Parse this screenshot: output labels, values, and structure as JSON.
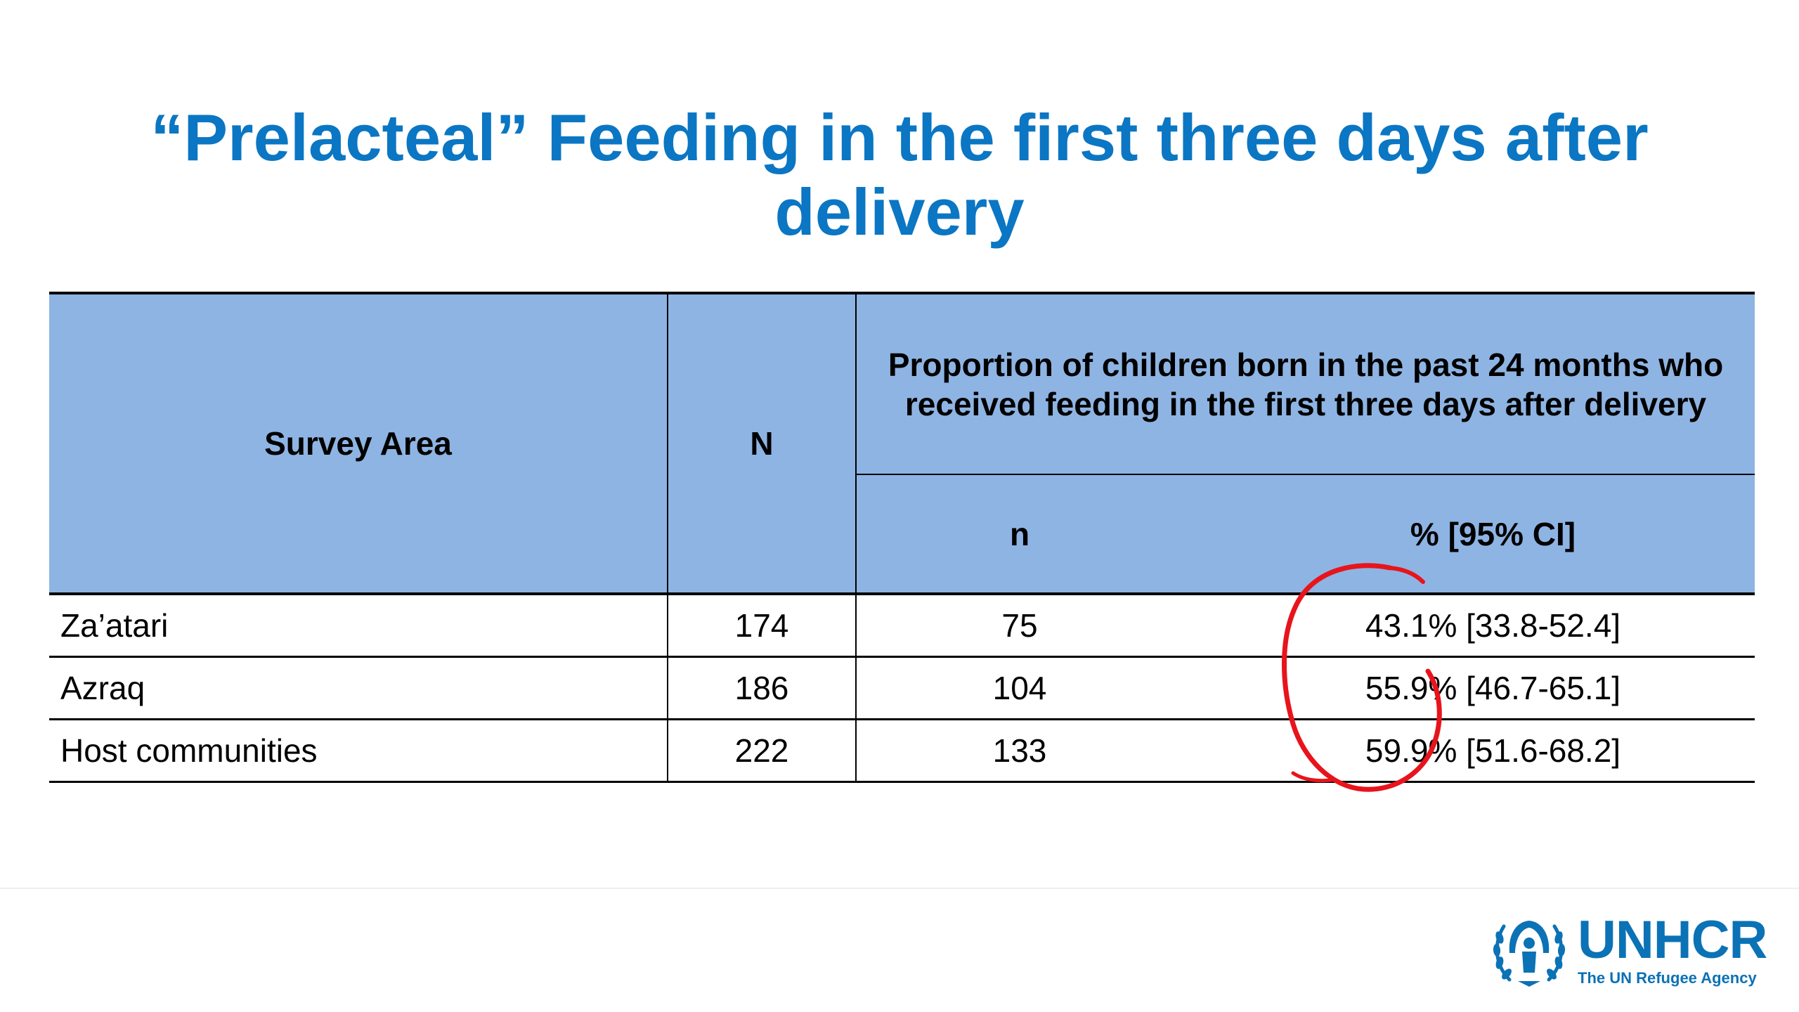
{
  "title": {
    "line1": "“Prelacteal” Feeding in the first three days after",
    "line2": "delivery"
  },
  "table": {
    "headers": {
      "survey_area": "Survey Area",
      "N": "N",
      "proportion": "Proportion of children born in the past 24 months who received feeding in the first three days after delivery",
      "n": "n",
      "pct": "% [95% CI]"
    },
    "rows": [
      {
        "area": "Za’atari",
        "N": "174",
        "n": "75",
        "pct": "43.1% [33.8-52.4]"
      },
      {
        "area": "Azraq",
        "N": "186",
        "n": "104",
        "pct": "55.9% [46.7-65.1]"
      },
      {
        "area": "Host communities",
        "N": "222",
        "n": "133",
        "pct": "59.9% [51.6-68.2]"
      }
    ]
  },
  "annotation": {
    "shape": "hand-drawn circle",
    "color": "#e8141c"
  },
  "logo": {
    "name": "UNHCR",
    "tagline": "The UN Refugee Agency",
    "color": "#0b72b5"
  }
}
